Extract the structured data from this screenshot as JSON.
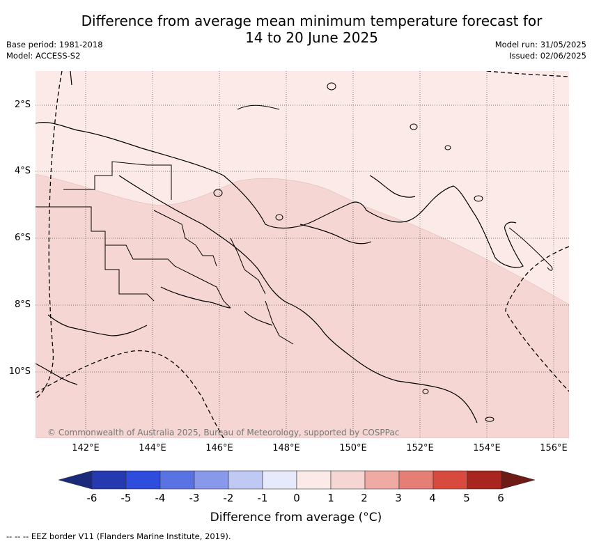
{
  "title": {
    "line1": "Difference from average mean minimum temperature forecast for",
    "line2": "14 to 20 June 2025"
  },
  "meta": {
    "base_period": "Base period: 1981-2018",
    "model": "Model: ACCESS-S2",
    "model_run": "Model run: 31/05/2025",
    "issued": "Issued: 02/06/2025"
  },
  "map": {
    "lat_labels": [
      "2°S",
      "4°S",
      "6°S",
      "8°S",
      "10°S"
    ],
    "lon_labels": [
      "142°E",
      "144°E",
      "146°E",
      "148°E",
      "150°E",
      "152°E",
      "154°E",
      "156°E"
    ],
    "copyright": "© Commonwealth of Australia 2025, Bureau of Meteorology, supported by COSPPac",
    "fill_colors": {
      "zero_to_one": "#fbeae7",
      "one_to_two": "#f5d6d2"
    }
  },
  "colorbar": {
    "title": "Difference from average (°C)",
    "ticks": [
      "-6",
      "-5",
      "-4",
      "-3",
      "-2",
      "-1",
      "0",
      "1",
      "2",
      "3",
      "4",
      "5",
      "6"
    ],
    "colors": [
      "#1b2a7a",
      "#2539b0",
      "#2f4ddc",
      "#5a73e3",
      "#8899ec",
      "#c0c8f4",
      "#e6eafa",
      "#fbeae7",
      "#f5d6d2",
      "#efaaa3",
      "#e57e74",
      "#d84a3e",
      "#a8261f",
      "#6e1a16"
    ]
  },
  "legend": {
    "eez_note": "--  --  -- EEZ border V11 (Flanders Marine Institute, 2019)."
  }
}
